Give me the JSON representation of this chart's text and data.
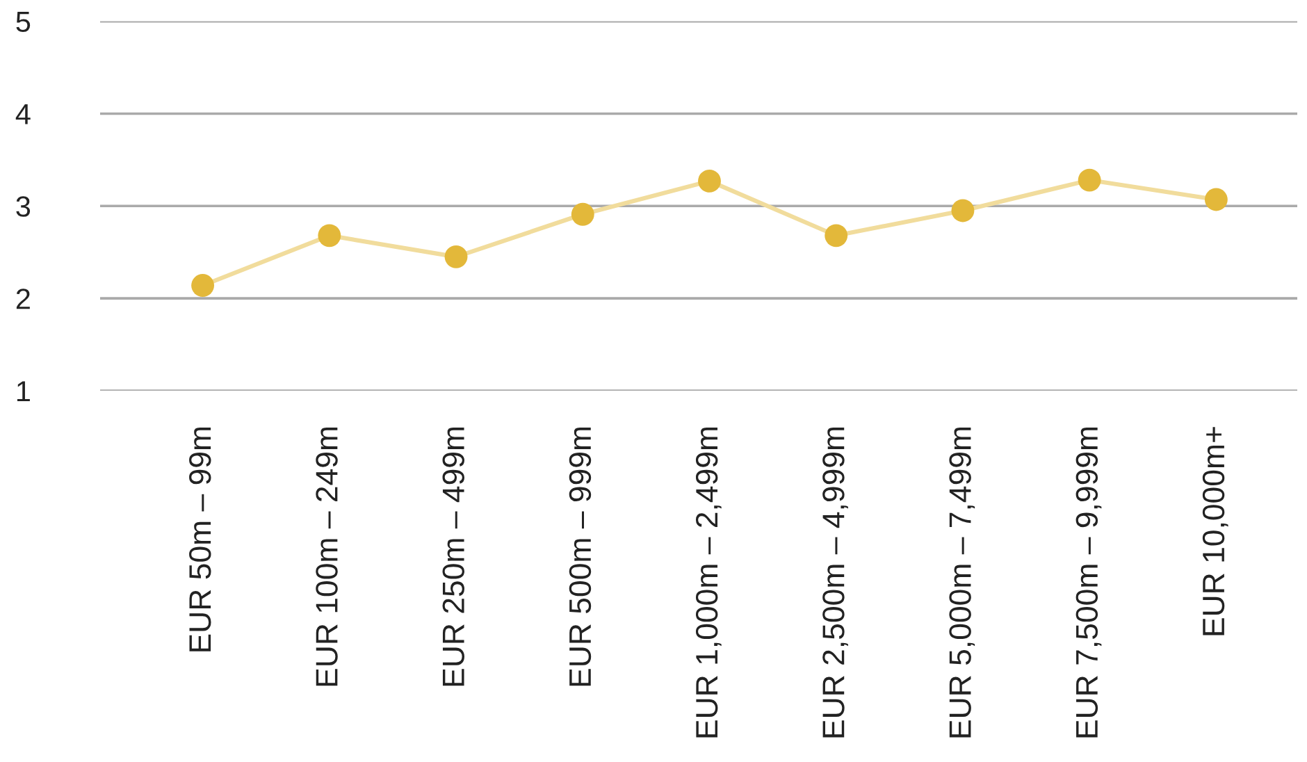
{
  "chart_data": {
    "type": "line",
    "categories": [
      "EUR 50m – 99m",
      "EUR 100m – 249m",
      "EUR 250m – 499m",
      "EUR 500m – 999m",
      "EUR 1,000m – 2,499m",
      "EUR 2,500m – 4,999m",
      "EUR 5,000m – 7,499m",
      "EUR 7,500m – 9,999m",
      "EUR 10,000m+"
    ],
    "series": [
      {
        "color": "#e3b83a",
        "values": [
          2.14,
          2.68,
          2.45,
          2.91,
          3.27,
          2.68,
          2.95,
          3.28,
          3.07
        ]
      }
    ],
    "ylim": [
      1,
      5
    ],
    "yticks": [
      1,
      2,
      3,
      4,
      5
    ],
    "grid": "y",
    "marker": "circle",
    "line_style": "solid"
  }
}
